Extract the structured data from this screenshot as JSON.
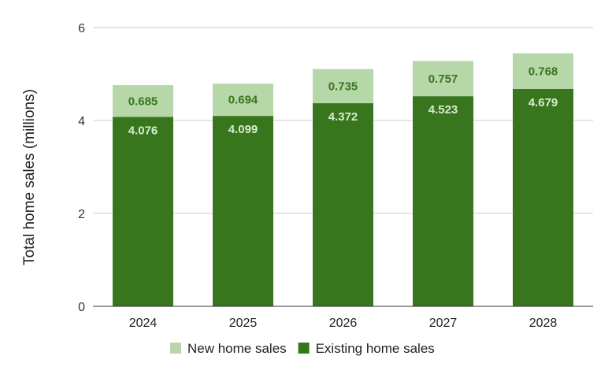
{
  "chart_data": {
    "type": "bar",
    "stacked": true,
    "categories": [
      "2024",
      "2025",
      "2026",
      "2027",
      "2028"
    ],
    "series": [
      {
        "name": "Existing home sales",
        "values": [
          4.076,
          4.099,
          4.372,
          4.523,
          4.679
        ],
        "color": "#38761d",
        "label_color": "#d9ead3"
      },
      {
        "name": "New home sales",
        "values": [
          0.685,
          0.694,
          0.735,
          0.757,
          0.768
        ],
        "color": "#b6d7a8",
        "label_color": "#38761d"
      }
    ],
    "legend_order": [
      1,
      0
    ],
    "title": "",
    "xlabel": "",
    "ylabel": "Total home sales (millions)",
    "ylim": [
      0,
      6
    ],
    "yticks": [
      0,
      2,
      4,
      6
    ],
    "grid": true,
    "legend_position": "bottom"
  }
}
